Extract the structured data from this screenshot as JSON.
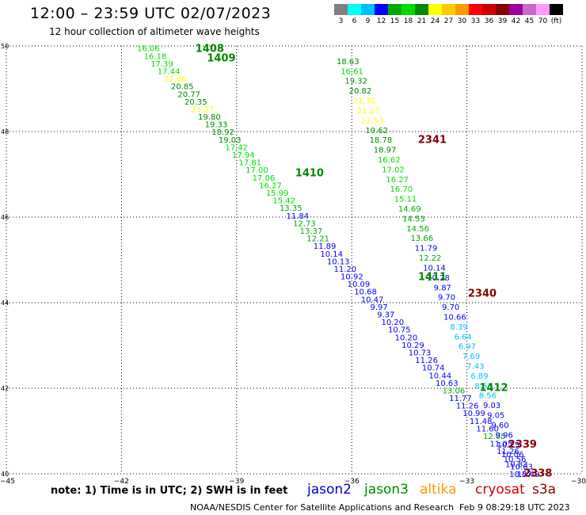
{
  "header": {
    "title": "12:00 – 23:59 UTC 02/07/2023",
    "subtitle": "12 hour collection of altimeter wave heights"
  },
  "legend": {
    "colors": [
      "#808080",
      "#00ffff",
      "#00bfff",
      "#0000ff",
      "#00aa00",
      "#00dd00",
      "#008800",
      "#ffff00",
      "#ffcc00",
      "#ff9900",
      "#ff0000",
      "#cc0000",
      "#880000",
      "#990099",
      "#cc66cc",
      "#ff99ff",
      "#000000"
    ],
    "labels": [
      "3",
      "6",
      "9",
      "12",
      "15",
      "18",
      "21",
      "24",
      "27",
      "30",
      "33",
      "36",
      "39",
      "42",
      "45",
      "70",
      "(ft)"
    ]
  },
  "footer": {
    "note": "note:  1) Time is in UTC;  2) SWH is in feet",
    "credit": "NOAA/NESDIS Center for Satellite Applications and Research",
    "generated": "Feb  9 08:29:18 UTC 2023"
  },
  "satellites": [
    {
      "name": "jason2",
      "color": "#0000cc"
    },
    {
      "name": "jason3",
      "color": "#008800"
    },
    {
      "name": "altika",
      "color": "#ff9900"
    },
    {
      "name": "cryosat",
      "color": "#cc0000"
    },
    {
      "name": "s3a",
      "color": "#880000"
    }
  ],
  "chart_data": {
    "type": "scatter",
    "xlim": [
      -45,
      -30
    ],
    "ylim": [
      40,
      50
    ],
    "x_ticks": [
      "−45",
      "−42",
      "−39",
      "−36",
      "−33",
      "−30"
    ],
    "x_tick_values": [
      -45,
      -42,
      -39,
      -36,
      -33,
      -30
    ],
    "y_ticks": [
      "50",
      "48",
      "46",
      "44",
      "42",
      "40"
    ],
    "y_tick_values": [
      50,
      48,
      46,
      44,
      42,
      40
    ],
    "grid": true,
    "track_a": {
      "start": [
        -41.3,
        49.95
      ],
      "end": [
        -31.4,
        40.0
      ],
      "values": [
        "16.06",
        "16.18",
        "17.39",
        "17.44",
        "21.60",
        "20.85",
        "20.77",
        "20.35",
        "21.27",
        "19.80",
        "19.33",
        "18.92",
        "19.03",
        "17.42",
        "17.94",
        "17.81",
        "17.00",
        "17.06",
        "16.27",
        "15.99",
        "15.42",
        "13.35",
        "11.84",
        "12.73",
        "13.37",
        "12.21",
        "11.89",
        "10.14",
        "10.13",
        "11.20",
        "10.92",
        "10.09",
        "10.68",
        "10.47",
        "9.97",
        "9.37",
        "10.20",
        "10.75",
        "10.20",
        "10.29",
        "10.73",
        "11.26",
        "10.74",
        "10.44",
        "10.63",
        "13.06",
        "11.77",
        "11.26",
        "10.99",
        "11.48",
        "11.60",
        "12.05",
        "11.05",
        "11.26",
        "10.56",
        "10.63",
        "10.49"
      ]
    },
    "track_b": {
      "start": [
        -36.1,
        49.65
      ],
      "end": [
        -31.6,
        40.0
      ],
      "values": [
        "18.63",
        "16.61",
        "19.32",
        "20.82",
        "21.32",
        "21.27",
        "21.53",
        "19.62",
        "18.78",
        "18.97",
        "16.62",
        "17.02",
        "16.27",
        "16.70",
        "15.11",
        "14.69",
        "14.53",
        "14.56",
        "13.66",
        "11.79",
        "12.22",
        "10.14",
        "10.28",
        "9.87",
        "9.70",
        "9.70",
        "10.66",
        "8.39",
        "6.64",
        "6.97",
        "7.69",
        "7.43",
        "6.89",
        "8.55",
        "8.56",
        "9.03",
        "9.05",
        "9.60",
        "9.96",
        "10.25",
        "10.06",
        "10.83",
        "10.57"
      ]
    },
    "annotations": [
      {
        "text": "1408",
        "x": -39.7,
        "y": 49.95,
        "color": "#008800"
      },
      {
        "text": "1409",
        "x": -39.4,
        "y": 49.73,
        "color": "#008800"
      },
      {
        "text": "1410",
        "x": -37.1,
        "y": 47.05,
        "color": "#008800"
      },
      {
        "text": "1411",
        "x": -33.9,
        "y": 44.62,
        "color": "#008800"
      },
      {
        "text": "1412",
        "x": -32.3,
        "y": 42.03,
        "color": "#008800"
      },
      {
        "text": "2341",
        "x": -33.9,
        "y": 47.82,
        "color": "#880000"
      },
      {
        "text": "2340",
        "x": -32.6,
        "y": 44.23,
        "color": "#880000"
      },
      {
        "text": "2339",
        "x": -31.55,
        "y": 40.7,
        "color": "#880000"
      },
      {
        "text": "2338",
        "x": -31.15,
        "y": 40.03,
        "color": "#880000"
      }
    ]
  }
}
